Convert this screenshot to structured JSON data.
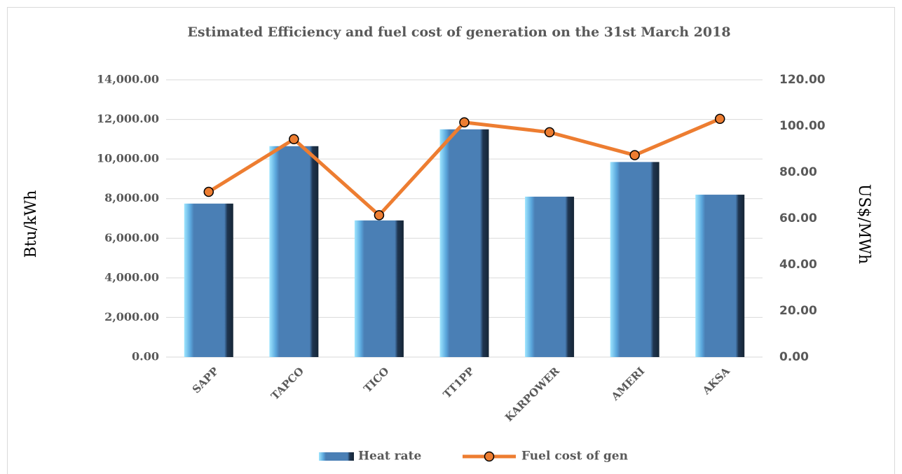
{
  "chart_data": {
    "type": "bar",
    "title": "Estimated Efficiency and fuel cost of generation on the 31st March 2018",
    "categories": [
      "SAPP",
      "TAPCO",
      "TICO",
      "TT1PP",
      "KARPOWER",
      "AMERI",
      "AKSA"
    ],
    "series": [
      {
        "name": "Heat rate",
        "color": "#4a7fb5",
        "values": [
          7750,
          10650,
          6900,
          11500,
          8100,
          9850,
          8200
        ]
      },
      {
        "name": "Fuel cost of gen",
        "color": "#ed7d31",
        "axis": "y2",
        "values": [
          71.5,
          94.3,
          61.4,
          101.6,
          97.3,
          87.4,
          103.1
        ]
      }
    ],
    "y_label": "Btu/kWh",
    "y2_label": "US$/MWh",
    "ylim": [
      0,
      14000
    ],
    "yticks": [
      {
        "value": 0,
        "label": "0.00"
      },
      {
        "value": 2000,
        "label": "2,000.00"
      },
      {
        "value": 4000,
        "label": "4,000.00"
      },
      {
        "value": 6000,
        "label": "6,000.00"
      },
      {
        "value": 8000,
        "label": "8,000.00"
      },
      {
        "value": 10000,
        "label": "10,000.00"
      },
      {
        "value": 12000,
        "label": "12,000.00"
      },
      {
        "value": 14000,
        "label": "14,000.00"
      }
    ],
    "y2lim": [
      0,
      120
    ],
    "y2ticks": [
      {
        "value": 0,
        "label": "0.00"
      },
      {
        "value": 20,
        "label": "20.00"
      },
      {
        "value": 40,
        "label": "40.00"
      },
      {
        "value": 60,
        "label": "60.00"
      },
      {
        "value": 80,
        "label": "80.00"
      },
      {
        "value": 100,
        "label": "100.00"
      },
      {
        "value": 120,
        "label": "120.00"
      }
    ],
    "grid": true
  }
}
